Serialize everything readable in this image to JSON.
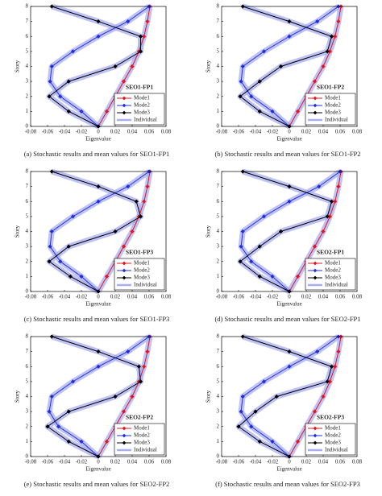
{
  "chart_data": [
    {
      "type": "line",
      "title": "SEO1-FP1",
      "caption": "(a)  Stochastic results and mean values for SEO1-FP1",
      "xlabel": "Eigenvalue",
      "ylabel": "Story",
      "xlim": [
        -0.08,
        0.08
      ],
      "xticks": [
        -0.08,
        -0.06,
        -0.04,
        -0.02,
        0,
        0.02,
        0.04,
        0.06,
        0.08
      ],
      "ylim": [
        0,
        8
      ],
      "yticks": [
        0,
        1,
        2,
        3,
        4,
        5,
        6,
        7,
        8
      ],
      "y": [
        0,
        1,
        2,
        3,
        4,
        5,
        6,
        7,
        8
      ],
      "series": [
        {
          "name": "Mode1",
          "color": "#e8141c",
          "values": [
            0,
            0.01,
            0.02,
            0.03,
            0.04,
            0.048,
            0.054,
            0.058,
            0.061
          ]
        },
        {
          "name": "Mode2",
          "color": "#1f2fe0",
          "values": [
            0,
            -0.02,
            -0.045,
            -0.057,
            -0.055,
            -0.03,
            0.0,
            0.035,
            0.06
          ]
        },
        {
          "name": "Mode3",
          "color": "#000000",
          "values": [
            0,
            -0.035,
            -0.058,
            -0.035,
            0.02,
            0.05,
            0.05,
            0.0,
            -0.055
          ]
        },
        {
          "name": "Individual",
          "color": "#a9aef2"
        }
      ]
    },
    {
      "type": "line",
      "title": "SEO1-FP2",
      "caption": "(b)  Stochastic results and mean values for SEO1-FP2",
      "xlabel": "Eigenvalue",
      "ylabel": "Story",
      "xlim": [
        -0.08,
        0.08
      ],
      "xticks": [
        -0.08,
        -0.06,
        -0.04,
        -0.02,
        0,
        0.02,
        0.04,
        0.06,
        0.08
      ],
      "ylim": [
        0,
        8
      ],
      "yticks": [
        0,
        1,
        2,
        3,
        4,
        5,
        6,
        7,
        8
      ],
      "y": [
        0,
        1,
        2,
        3,
        4,
        5,
        6,
        7,
        8
      ],
      "series": [
        {
          "name": "Mode1",
          "color": "#e8141c",
          "values": [
            0,
            0.01,
            0.02,
            0.03,
            0.04,
            0.048,
            0.054,
            0.058,
            0.061
          ]
        },
        {
          "name": "Mode2",
          "color": "#1f2fe0",
          "values": [
            0,
            -0.02,
            -0.045,
            -0.057,
            -0.055,
            -0.03,
            0.0,
            0.033,
            0.058
          ]
        },
        {
          "name": "Mode3",
          "color": "#000000",
          "values": [
            0,
            -0.035,
            -0.058,
            -0.035,
            -0.01,
            0.045,
            0.05,
            0.0,
            -0.055
          ]
        },
        {
          "name": "Individual",
          "color": "#a9aef2"
        }
      ]
    },
    {
      "type": "line",
      "title": "SEO1-FP3",
      "caption": "(c)  Stochastic results and mean values for SEO1-FP3",
      "xlabel": "Eigenvalue",
      "ylabel": "Story",
      "xlim": [
        -0.08,
        0.08
      ],
      "xticks": [
        -0.08,
        -0.06,
        -0.04,
        -0.02,
        0,
        0.02,
        0.04,
        0.06,
        0.08
      ],
      "ylim": [
        0,
        8
      ],
      "yticks": [
        0,
        1,
        2,
        3,
        4,
        5,
        6,
        7,
        8
      ],
      "y": [
        0,
        1,
        2,
        3,
        4,
        5,
        6,
        7,
        8
      ],
      "series": [
        {
          "name": "Mode1",
          "color": "#e8141c",
          "values": [
            0,
            0.01,
            0.02,
            0.03,
            0.04,
            0.048,
            0.054,
            0.058,
            0.061
          ]
        },
        {
          "name": "Mode2",
          "color": "#1f2fe0",
          "values": [
            0,
            -0.02,
            -0.045,
            -0.057,
            -0.055,
            -0.03,
            0.0,
            0.035,
            0.06
          ]
        },
        {
          "name": "Mode3",
          "color": "#000000",
          "values": [
            0,
            -0.033,
            -0.058,
            -0.035,
            0.02,
            0.05,
            0.045,
            0.0,
            -0.055
          ]
        },
        {
          "name": "Individual",
          "color": "#a9aef2"
        }
      ]
    },
    {
      "type": "line",
      "title": "SEO2-FP1",
      "caption": "(d)  Stochastic results and mean values for SEO2-FP1",
      "xlabel": "Eigenvalue",
      "ylabel": "Story",
      "xlim": [
        -0.08,
        0.08
      ],
      "xticks": [
        -0.08,
        -0.06,
        -0.04,
        -0.02,
        0,
        0.02,
        0.04,
        0.06,
        0.08
      ],
      "ylim": [
        0,
        8
      ],
      "yticks": [
        0,
        1,
        2,
        3,
        4,
        5,
        6,
        7,
        8
      ],
      "y": [
        0,
        1,
        2,
        3,
        4,
        5,
        6,
        7,
        8
      ],
      "series": [
        {
          "name": "Mode1",
          "color": "#e8141c",
          "values": [
            0,
            0.01,
            0.02,
            0.03,
            0.04,
            0.048,
            0.054,
            0.058,
            0.061
          ]
        },
        {
          "name": "Mode2",
          "color": "#1f2fe0",
          "values": [
            0,
            -0.02,
            -0.045,
            -0.057,
            -0.055,
            -0.03,
            0.0,
            0.035,
            0.06
          ]
        },
        {
          "name": "Mode3",
          "color": "#000000",
          "values": [
            0,
            -0.035,
            -0.058,
            -0.035,
            -0.01,
            0.045,
            0.05,
            0.0,
            -0.055
          ]
        },
        {
          "name": "Individual",
          "color": "#a9aef2"
        }
      ]
    },
    {
      "type": "line",
      "title": "SEO2-FP2",
      "caption": "(e)  Stochastic results and mean values for SEO2-FP2",
      "xlabel": "Eigenvalue",
      "ylabel": "Story",
      "xlim": [
        -0.08,
        0.08
      ],
      "xticks": [
        -0.08,
        -0.06,
        -0.04,
        -0.02,
        0,
        0.02,
        0.04,
        0.06,
        0.08
      ],
      "ylim": [
        0,
        8
      ],
      "yticks": [
        0,
        1,
        2,
        3,
        4,
        5,
        6,
        7,
        8
      ],
      "y": [
        0,
        1,
        2,
        3,
        4,
        5,
        6,
        7,
        8
      ],
      "series": [
        {
          "name": "Mode1",
          "color": "#e8141c",
          "values": [
            0,
            0.01,
            0.02,
            0.03,
            0.04,
            0.048,
            0.054,
            0.058,
            0.061
          ]
        },
        {
          "name": "Mode2",
          "color": "#1f2fe0",
          "values": [
            0,
            -0.02,
            -0.047,
            -0.058,
            -0.055,
            -0.03,
            0.0,
            0.035,
            0.06
          ]
        },
        {
          "name": "Mode3",
          "color": "#000000",
          "values": [
            0,
            -0.035,
            -0.06,
            -0.035,
            0.02,
            0.05,
            0.048,
            0.0,
            -0.055
          ]
        },
        {
          "name": "Individual",
          "color": "#a9aef2"
        }
      ]
    },
    {
      "type": "line",
      "title": "SEO2-FP3",
      "caption": "(f)  Stochastic results and mean values for SEO2-FP3",
      "xlabel": "Eigenvalue",
      "ylabel": "Story",
      "xlim": [
        -0.08,
        0.08
      ],
      "xticks": [
        -0.08,
        -0.06,
        -0.04,
        -0.02,
        0,
        0.02,
        0.04,
        0.06,
        0.08
      ],
      "ylim": [
        0,
        8
      ],
      "yticks": [
        0,
        1,
        2,
        3,
        4,
        5,
        6,
        7,
        8
      ],
      "y": [
        0,
        1,
        2,
        3,
        4,
        5,
        6,
        7,
        8
      ],
      "series": [
        {
          "name": "Mode1",
          "color": "#e8141c",
          "values": [
            0,
            0.01,
            0.02,
            0.03,
            0.04,
            0.048,
            0.054,
            0.058,
            0.061
          ]
        },
        {
          "name": "Mode2",
          "color": "#1f2fe0",
          "values": [
            0,
            -0.02,
            -0.045,
            -0.057,
            -0.055,
            -0.03,
            0.0,
            0.033,
            0.058
          ]
        },
        {
          "name": "Mode3",
          "color": "#000000",
          "values": [
            0,
            -0.035,
            -0.06,
            -0.04,
            -0.015,
            0.045,
            0.05,
            0.0,
            -0.055
          ]
        },
        {
          "name": "Individual",
          "color": "#a9aef2"
        }
      ]
    }
  ]
}
